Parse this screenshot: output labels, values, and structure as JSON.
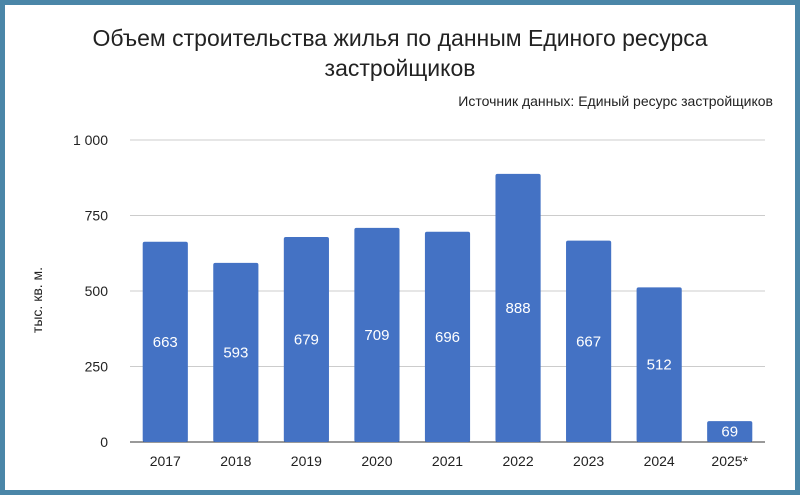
{
  "chart_data": {
    "type": "bar",
    "title_line1": "Объем строительства жилья по данным Единого ресурса",
    "title_line2": "застройщиков",
    "source": "Источник данных: Единый ресурс застройщиков",
    "ylabel": "тыс. кв. м.",
    "categories": [
      "2017",
      "2018",
      "2019",
      "2020",
      "2021",
      "2022",
      "2023",
      "2024",
      "2025*"
    ],
    "values": [
      663,
      593,
      679,
      709,
      696,
      888,
      667,
      512,
      69
    ],
    "value_labels": [
      "663",
      "593",
      "679",
      "709",
      "696",
      "888",
      "667",
      "512",
      "69"
    ],
    "ylim": [
      0,
      1000
    ],
    "yticks": [
      0,
      250,
      500,
      750,
      1000
    ],
    "ytick_labels": [
      "0",
      "250",
      "500",
      "750",
      "1 000"
    ],
    "grid": true,
    "legend": "none",
    "bar_color": "#4472c4",
    "grid_color": "#cccccc",
    "border_color": "#4a86a8"
  }
}
